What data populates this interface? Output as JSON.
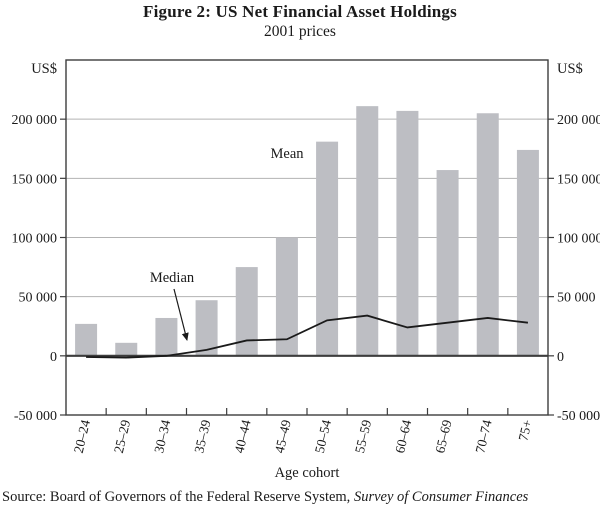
{
  "title": "Figure 2: US Net Financial Asset Holdings",
  "subtitle": "2001 prices",
  "source_prefix": "Source: Board of Governors of the Federal Reserve System, ",
  "source_italic": "Survey of Consumer Finances",
  "chart_data": {
    "type": "bar",
    "title": "Figure 2: US Net Financial Asset Holdings",
    "subtitle": "2001 prices",
    "categories": [
      "20–24",
      "25–29",
      "30–34",
      "35–39",
      "40–44",
      "45–49",
      "50–54",
      "55–59",
      "60–64",
      "65–69",
      "70–74",
      "75+"
    ],
    "series": [
      {
        "name": "Mean",
        "type": "bar",
        "color": "#bdbec3",
        "values": [
          27000,
          11000,
          32000,
          47000,
          75000,
          100000,
          181000,
          211000,
          207000,
          157000,
          205000,
          174000
        ]
      },
      {
        "name": "Median",
        "type": "line",
        "color": "#1a1a1a",
        "values": [
          -1000,
          -1500,
          0,
          5000,
          13000,
          14000,
          30000,
          34000,
          24000,
          28000,
          32000,
          28000
        ]
      }
    ],
    "xlabel": "Age cohort",
    "y_unit_label": "US$",
    "ylim": [
      -50000,
      250000
    ],
    "yticks": [
      -50000,
      0,
      50000,
      100000,
      150000,
      200000
    ],
    "ytick_labels": [
      "-50 000",
      "0",
      "50 000",
      "100 000",
      "150 000",
      "200 000"
    ],
    "grid": "horizontal",
    "legend_position": "inline-annotations",
    "colors": {
      "bar_fill": "#bdbec3",
      "gridline": "#b3b3b3",
      "frame": "#3d3d3d",
      "zero_line": "#3d3d3d",
      "text": "#1a1a1a"
    }
  }
}
